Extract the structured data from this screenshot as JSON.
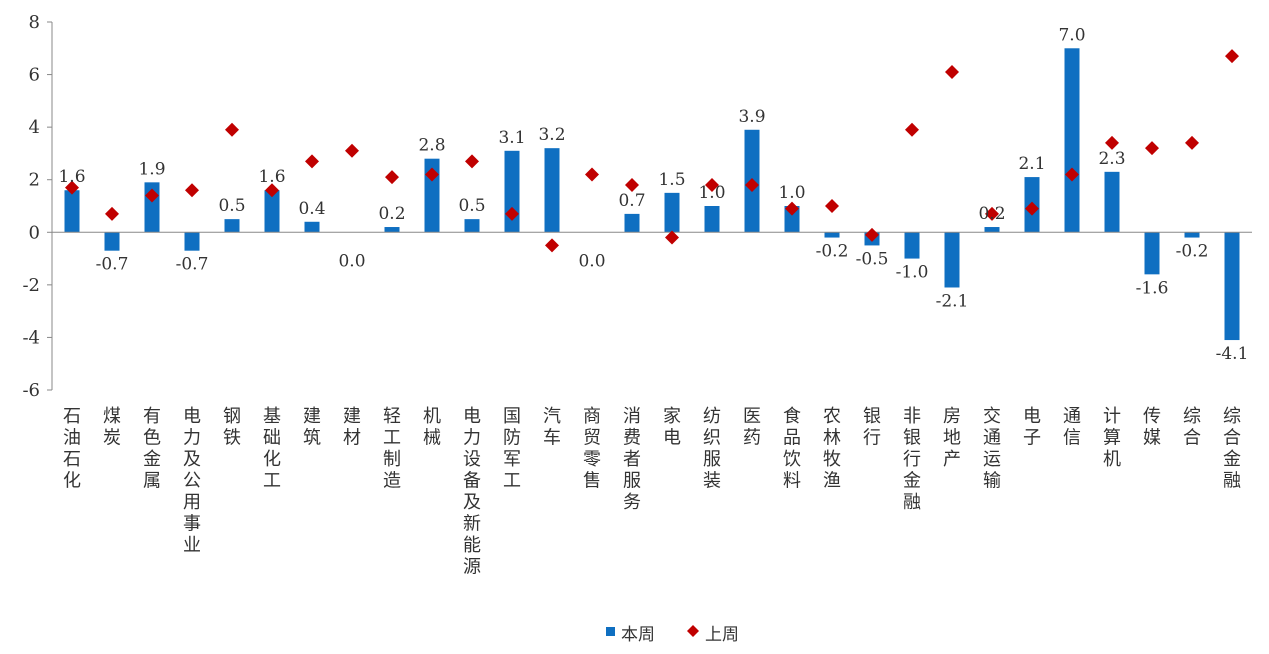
{
  "chart_data": {
    "type": "bar",
    "categories": [
      "石油石化",
      "煤炭",
      "有色金属",
      "电力及公用事业",
      "钢铁",
      "基础化工",
      "建筑",
      "建材",
      "轻工制造",
      "机械",
      "电力设备及新能源",
      "国防军工",
      "汽车",
      "商贸零售",
      "消费者服务",
      "家电",
      "纺织服装",
      "医药",
      "食品饮料",
      "农林牧渔",
      "银行",
      "非银行金融",
      "房地产",
      "交通运输",
      "电子",
      "通信",
      "计算机",
      "传媒",
      "综合",
      "综合金融"
    ],
    "series": [
      {
        "name": "本周",
        "type": "bar",
        "color": "#0f6fc1",
        "values": [
          1.6,
          -0.7,
          1.9,
          -0.7,
          0.5,
          1.6,
          0.4,
          0.0,
          0.2,
          2.8,
          0.5,
          3.1,
          3.2,
          0.0,
          0.7,
          1.5,
          1.0,
          3.9,
          1.0,
          -0.2,
          -0.5,
          -1.0,
          -2.1,
          0.2,
          2.1,
          7.0,
          2.3,
          -1.6,
          -0.2,
          -4.1
        ],
        "labels": [
          "1.6",
          "-0.7",
          "1.9",
          "-0.7",
          "0.5",
          "1.6",
          "0.4",
          "0.0",
          "0.2",
          "2.8",
          "0.5",
          "3.1",
          "3.2",
          "0.0",
          "0.7",
          "1.5",
          "1.0",
          "3.9",
          "1.0",
          "-0.2",
          "-0.5",
          "-1.0",
          "-2.1",
          "0.2",
          "2.1",
          "7.0",
          "2.3",
          "-1.6",
          "-0.2",
          "-4.1"
        ]
      },
      {
        "name": "上周",
        "type": "scatter",
        "marker": "diamond",
        "color": "#c00000",
        "values": [
          1.7,
          0.7,
          1.4,
          1.6,
          3.9,
          1.6,
          2.7,
          3.1,
          2.1,
          2.2,
          2.7,
          0.7,
          -0.5,
          2.2,
          1.8,
          -0.2,
          1.8,
          1.8,
          0.9,
          1.0,
          -0.1,
          3.9,
          6.1,
          0.7,
          0.9,
          2.2,
          3.4,
          3.2,
          3.4,
          6.7
        ]
      }
    ],
    "ylim": [
      -6,
      8
    ],
    "yticks": [
      "-6",
      "-4",
      "-2",
      "0",
      "2",
      "4",
      "6",
      "8"
    ],
    "xlabel": "",
    "ylabel": "",
    "legend_position": "bottom-center",
    "grid": false
  }
}
